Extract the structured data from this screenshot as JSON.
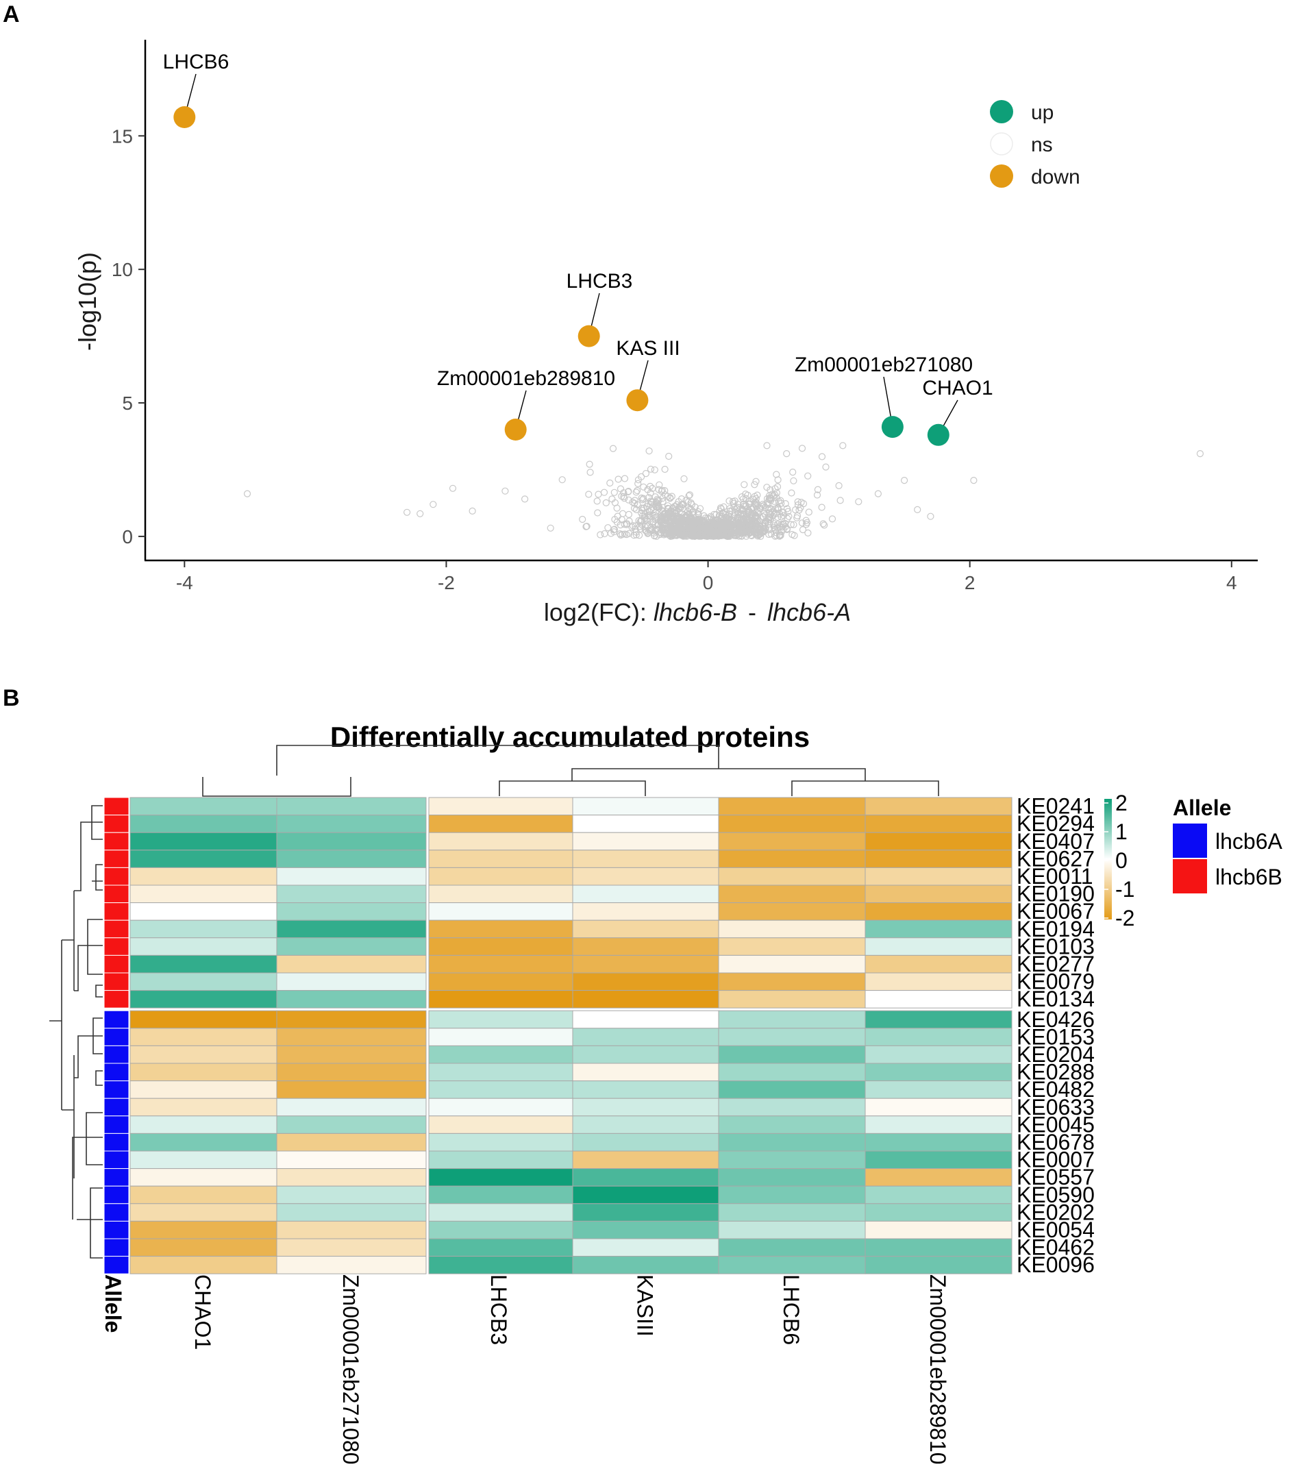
{
  "panels": {
    "a": "A",
    "b": "B"
  },
  "chart_data": [
    {
      "type": "scatter",
      "xlabel": "log2(FC):",
      "xlabel_a": "lhcb6-B",
      "xlabel_sep": "-",
      "xlabel_b": "lhcb6-A",
      "ylabel": "-log10(p)",
      "xlim": [
        -4.3,
        4.2
      ],
      "ylim": [
        -0.9,
        18.6
      ],
      "x_ticks": [
        -4,
        -2,
        0,
        2,
        4
      ],
      "y_ticks": [
        0,
        5,
        10,
        15
      ],
      "legend": {
        "position": "top-right",
        "entries": [
          {
            "label": "up",
            "color": "#0E9F78"
          },
          {
            "label": "ns",
            "color": "#D9D9D9"
          },
          {
            "label": "down",
            "color": "#E39A14"
          }
        ]
      },
      "labeled_points": [
        {
          "label": "LHCB6",
          "x": -4.0,
          "y": 15.7,
          "group": "down"
        },
        {
          "label": "LHCB3",
          "x": -0.91,
          "y": 7.5,
          "group": "down"
        },
        {
          "label": "KAS III",
          "x": -0.54,
          "y": 5.1,
          "group": "down"
        },
        {
          "label": "Zm00001eb289810",
          "x": -1.47,
          "y": 4.0,
          "group": "down"
        },
        {
          "label": "Zm00001eb271080",
          "x": 1.41,
          "y": 4.1,
          "group": "up"
        },
        {
          "label": "CHAO1",
          "x": 1.76,
          "y": 3.8,
          "group": "up"
        }
      ],
      "ns_outliers": [
        {
          "x": -3.52,
          "y": 1.6
        },
        {
          "x": -2.3,
          "y": 0.9
        },
        {
          "x": -2.2,
          "y": 0.85
        },
        {
          "x": -2.1,
          "y": 1.2
        },
        {
          "x": -1.95,
          "y": 1.8
        },
        {
          "x": -1.8,
          "y": 0.95
        },
        {
          "x": -1.55,
          "y": 1.7
        },
        {
          "x": -1.4,
          "y": 1.4
        },
        {
          "x": -0.9,
          "y": 2.4
        },
        {
          "x": -0.75,
          "y": 2.0
        },
        {
          "x": -0.45,
          "y": 3.2
        },
        {
          "x": -0.3,
          "y": 3.0
        },
        {
          "x": 0.45,
          "y": 3.4
        },
        {
          "x": 0.6,
          "y": 3.1
        },
        {
          "x": 0.9,
          "y": 2.6
        },
        {
          "x": 1.0,
          "y": 1.9
        },
        {
          "x": 1.03,
          "y": 3.4
        },
        {
          "x": 1.15,
          "y": 1.3
        },
        {
          "x": 1.3,
          "y": 1.6
        },
        {
          "x": 1.5,
          "y": 2.1
        },
        {
          "x": 1.6,
          "y": 1.0
        },
        {
          "x": 1.7,
          "y": 0.75
        },
        {
          "x": 2.03,
          "y": 2.1
        },
        {
          "x": 3.76,
          "y": 3.1
        }
      ]
    },
    {
      "type": "heatmap",
      "title": "Differentially accumulated proteins",
      "columns": [
        "CHAO1",
        "Zm00001eb271080",
        "LHCB3",
        "KASIII",
        "LHCB6",
        "Zm00001eb289810"
      ],
      "annotation_label": "Allele",
      "legend_title": "Allele",
      "alleles": [
        {
          "name": "lhcb6A",
          "color": "#0A0AF5"
        },
        {
          "name": "lhcb6B",
          "color": "#F51414"
        }
      ],
      "scale": {
        "min": -2,
        "max": 2,
        "ticks": [
          "2",
          "1",
          "0",
          "-1",
          "-2"
        ],
        "low_color": "#E39A14",
        "mid_color": "#FFFFFF",
        "high_color": "#0E9F78"
      },
      "rows": [
        {
          "id": "KE0241",
          "allele": "lhcb6B",
          "values": [
            0.9,
            0.9,
            -0.3,
            0.1,
            -1.6,
            -1.2
          ]
        },
        {
          "id": "KE0294",
          "allele": "lhcb6B",
          "values": [
            1.2,
            1.1,
            -1.6,
            0.0,
            -1.7,
            -1.7
          ]
        },
        {
          "id": "KE0407",
          "allele": "lhcb6B",
          "values": [
            1.8,
            1.3,
            -0.5,
            -0.2,
            -1.5,
            -1.9
          ]
        },
        {
          "id": "KE0627",
          "allele": "lhcb6B",
          "values": [
            1.7,
            1.2,
            -0.8,
            -0.7,
            -1.7,
            -1.8
          ]
        },
        {
          "id": "KE0011",
          "allele": "lhcb6B",
          "values": [
            -0.6,
            0.2,
            -0.8,
            -0.6,
            -0.9,
            -0.8
          ]
        },
        {
          "id": "KE0190",
          "allele": "lhcb6B",
          "values": [
            -0.3,
            0.7,
            -0.4,
            0.2,
            -1.5,
            -1.2
          ]
        },
        {
          "id": "KE0067",
          "allele": "lhcb6B",
          "values": [
            0.0,
            0.8,
            0.1,
            -0.3,
            -1.5,
            -1.7
          ]
        },
        {
          "id": "KE0194",
          "allele": "lhcb6B",
          "values": [
            0.6,
            1.7,
            -1.6,
            -0.8,
            -0.3,
            1.1
          ]
        },
        {
          "id": "KE0103",
          "allele": "lhcb6B",
          "values": [
            0.4,
            1.0,
            -1.7,
            -1.5,
            -0.8,
            0.3
          ]
        },
        {
          "id": "KE0277",
          "allele": "lhcb6B",
          "values": [
            1.7,
            -0.8,
            -1.6,
            -1.5,
            -0.2,
            -1.0
          ]
        },
        {
          "id": "KE0079",
          "allele": "lhcb6B",
          "values": [
            0.7,
            0.2,
            -1.7,
            -1.9,
            -1.5,
            -0.5
          ]
        },
        {
          "id": "KE0134",
          "allele": "lhcb6B",
          "values": [
            1.7,
            1.1,
            -2.0,
            -2.0,
            -0.9,
            0.0
          ]
        },
        {
          "id": "KE0426",
          "allele": "lhcb6A",
          "values": [
            -2.0,
            -1.9,
            0.5,
            0.0,
            0.7,
            1.6
          ]
        },
        {
          "id": "KE0153",
          "allele": "lhcb6A",
          "values": [
            -0.8,
            -1.4,
            0.1,
            0.7,
            0.7,
            0.8
          ]
        },
        {
          "id": "KE0204",
          "allele": "lhcb6A",
          "values": [
            -0.7,
            -1.4,
            0.9,
            0.7,
            1.2,
            0.6
          ]
        },
        {
          "id": "KE0288",
          "allele": "lhcb6A",
          "values": [
            -0.9,
            -1.5,
            0.6,
            -0.2,
            0.8,
            1.0
          ]
        },
        {
          "id": "KE0482",
          "allele": "lhcb6A",
          "values": [
            -0.3,
            -1.6,
            0.6,
            0.6,
            1.3,
            0.6
          ]
        },
        {
          "id": "KE0633",
          "allele": "lhcb6A",
          "values": [
            -0.5,
            0.2,
            0.1,
            0.4,
            0.6,
            -0.1
          ]
        },
        {
          "id": "KE0045",
          "allele": "lhcb6A",
          "values": [
            0.3,
            0.8,
            -0.4,
            0.5,
            0.9,
            0.3
          ]
        },
        {
          "id": "KE0678",
          "allele": "lhcb6A",
          "values": [
            1.1,
            -1.0,
            0.5,
            0.7,
            1.1,
            1.1
          ]
        },
        {
          "id": "KE0007",
          "allele": "lhcb6A",
          "values": [
            0.3,
            -0.1,
            0.7,
            -1.1,
            1.0,
            1.4
          ]
        },
        {
          "id": "KE0557",
          "allele": "lhcb6A",
          "values": [
            -0.2,
            -0.5,
            2.0,
            1.5,
            1.2,
            -1.3
          ]
        },
        {
          "id": "KE0590",
          "allele": "lhcb6A",
          "values": [
            -0.9,
            0.5,
            1.2,
            2.0,
            1.1,
            0.8
          ]
        },
        {
          "id": "KE0202",
          "allele": "lhcb6A",
          "values": [
            -0.7,
            0.6,
            0.4,
            1.6,
            0.8,
            0.9
          ]
        },
        {
          "id": "KE0054",
          "allele": "lhcb6A",
          "values": [
            -1.5,
            -0.7,
            0.9,
            1.2,
            0.5,
            -0.2
          ]
        },
        {
          "id": "KE0462",
          "allele": "lhcb6A",
          "values": [
            -1.5,
            -0.6,
            1.4,
            0.3,
            1.2,
            1.2
          ]
        },
        {
          "id": "KE0096",
          "allele": "lhcb6A",
          "values": [
            -1.0,
            -0.2,
            1.6,
            1.2,
            1.1,
            1.2
          ]
        }
      ]
    }
  ]
}
